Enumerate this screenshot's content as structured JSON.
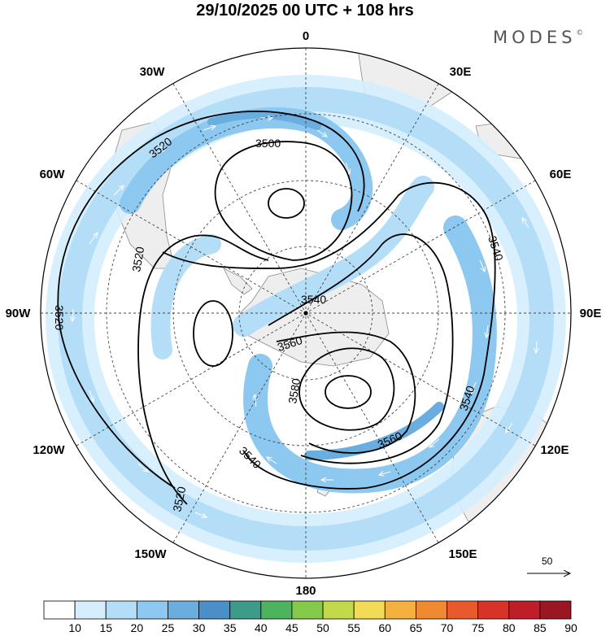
{
  "title": "29/10/2025  00 UTC  + 108 hrs",
  "brand": "MODES",
  "brand_mark": "©",
  "longitudes": [
    "0",
    "30E",
    "60E",
    "90E",
    "120E",
    "150E",
    "180",
    "150W",
    "120W",
    "90W",
    "60W",
    "30W"
  ],
  "contours": {
    "units": "gpm",
    "labels": [
      "3520",
      "3520",
      "3520",
      "3520",
      "3500",
      "3540",
      "3540",
      "3540",
      "3560",
      "3580",
      "3560",
      "3540"
    ]
  },
  "reference_vector": {
    "label": "50"
  },
  "colorbar": {
    "ticks": [
      "10",
      "15",
      "20",
      "25",
      "30",
      "35",
      "40",
      "45",
      "50",
      "55",
      "60",
      "65",
      "70",
      "75",
      "80",
      "85",
      "90"
    ],
    "colors": [
      "#ffffff",
      "#d4eefd",
      "#b4def8",
      "#8cc8f0",
      "#6aaee0",
      "#4a90c8",
      "#3c9c8a",
      "#4cb45c",
      "#84c94a",
      "#c3d94a",
      "#f3dc55",
      "#f4b140",
      "#f08a30",
      "#e85a2c",
      "#d63428",
      "#bf1e28",
      "#991622"
    ]
  }
}
